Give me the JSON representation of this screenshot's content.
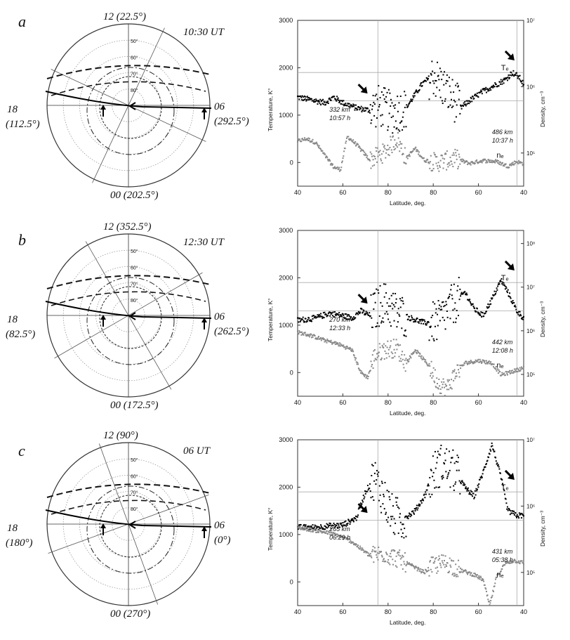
{
  "panels": [
    {
      "letter": "a",
      "dial": {
        "top": "12 (22.5°)",
        "ut": "10:30 UT",
        "left_hour": "18",
        "left_deg": "(112.5°)",
        "right_hour": "06",
        "right_deg": "(292.5°)",
        "bottom": "00 (202.5°)",
        "ring_labels": [
          "50°",
          "60°",
          "70°",
          "80°"
        ]
      },
      "chart_data": {
        "type": "scatter",
        "xlabel": "Latitude, deg.",
        "ylabel_left": "Temperature, K°",
        "ylabel_right": "Density, cm⁻³",
        "x_tick_labels": [
          "40",
          "60",
          "80",
          "80",
          "60",
          "40"
        ],
        "y_ticks": [
          0,
          1000,
          2000,
          3000
        ],
        "ylim": [
          -500,
          3000
        ],
        "right_tick_labels": [
          "10⁵",
          "10⁶",
          "10⁷"
        ],
        "right_log_range": [
          4.5,
          7
        ],
        "te_label": "Tₑ",
        "ne_label": "nₑ",
        "start_annot": [
          "332 km",
          "10:57 h"
        ],
        "end_annot": [
          "486 km",
          "10:37 h"
        ],
        "te_series": [
          [
            0,
            1380
          ],
          [
            0.06,
            1320
          ],
          [
            0.12,
            1260
          ],
          [
            0.16,
            1380
          ],
          [
            0.2,
            1260
          ],
          [
            0.26,
            1150
          ],
          [
            0.32,
            1100
          ],
          [
            0.36,
            1200
          ],
          [
            0.42,
            1050
          ],
          [
            0.48,
            1150
          ],
          [
            0.55,
            1650
          ],
          [
            0.6,
            1850
          ],
          [
            0.66,
            1500
          ],
          [
            0.72,
            1150
          ],
          [
            0.76,
            1300
          ],
          [
            0.82,
            1500
          ],
          [
            0.88,
            1650
          ],
          [
            0.92,
            1750
          ],
          [
            0.95,
            1900
          ],
          [
            0.98,
            1800
          ],
          [
            1,
            1650
          ]
        ],
        "ne_series": [
          [
            0,
            450
          ],
          [
            0.04,
            500
          ],
          [
            0.08,
            420
          ],
          [
            0.12,
            150
          ],
          [
            0.16,
            -100
          ],
          [
            0.19,
            -150
          ],
          [
            0.22,
            550
          ],
          [
            0.26,
            380
          ],
          [
            0.32,
            50
          ],
          [
            0.38,
            200
          ],
          [
            0.44,
            500
          ],
          [
            0.48,
            80
          ],
          [
            0.52,
            300
          ],
          [
            0.56,
            50
          ],
          [
            0.62,
            0
          ],
          [
            0.7,
            80
          ],
          [
            0.76,
            -20
          ],
          [
            0.82,
            40
          ],
          [
            0.88,
            20
          ],
          [
            0.93,
            -80
          ],
          [
            0.97,
            20
          ],
          [
            1,
            -30
          ]
        ]
      }
    },
    {
      "letter": "b",
      "dial": {
        "top": "12 (352.5°)",
        "ut": "12:30 UT",
        "left_hour": "18",
        "left_deg": "(82.5°)",
        "right_hour": "06",
        "right_deg": "(262.5°)",
        "bottom": "00 (172.5°)",
        "ring_labels": [
          "50°",
          "60°",
          "70°",
          "80°"
        ]
      },
      "chart_data": {
        "type": "scatter",
        "xlabel": "Latitude, deg.",
        "ylabel_left": "Temperature, K°",
        "ylabel_right": "Density, cm⁻³",
        "x_tick_labels": [
          "40",
          "60",
          "80",
          "80",
          "60",
          "40"
        ],
        "y_ticks": [
          0,
          1000,
          2000,
          3000
        ],
        "ylim": [
          -500,
          3000
        ],
        "right_tick_labels": [
          "10⁵",
          "10⁶",
          "10⁷",
          "10⁸"
        ],
        "right_log_range": [
          4.5,
          8.3
        ],
        "te_label": "Tₑ",
        "ne_label": "nₑ",
        "start_annot": [
          "270 km",
          "12:33 h"
        ],
        "end_annot": [
          "442 km",
          "12:08 h"
        ],
        "te_series": [
          [
            0,
            1100
          ],
          [
            0.08,
            1150
          ],
          [
            0.14,
            1250
          ],
          [
            0.2,
            1200
          ],
          [
            0.24,
            1150
          ],
          [
            0.28,
            1300
          ],
          [
            0.32,
            1200
          ],
          [
            0.38,
            1500
          ],
          [
            0.44,
            1250
          ],
          [
            0.5,
            1150
          ],
          [
            0.56,
            1050
          ],
          [
            0.62,
            1050
          ],
          [
            0.68,
            1400
          ],
          [
            0.74,
            1700
          ],
          [
            0.78,
            1350
          ],
          [
            0.82,
            1200
          ],
          [
            0.86,
            1550
          ],
          [
            0.9,
            1950
          ],
          [
            0.93,
            1700
          ],
          [
            0.97,
            1300
          ],
          [
            1,
            1150
          ]
        ],
        "ne_series": [
          [
            0,
            850
          ],
          [
            0.06,
            780
          ],
          [
            0.12,
            680
          ],
          [
            0.18,
            600
          ],
          [
            0.24,
            480
          ],
          [
            0.28,
            0
          ],
          [
            0.31,
            -100
          ],
          [
            0.34,
            350
          ],
          [
            0.38,
            480
          ],
          [
            0.44,
            520
          ],
          [
            0.48,
            200
          ],
          [
            0.52,
            480
          ],
          [
            0.58,
            150
          ],
          [
            0.62,
            -200
          ],
          [
            0.66,
            -350
          ],
          [
            0.7,
            0
          ],
          [
            0.74,
            200
          ],
          [
            0.8,
            250
          ],
          [
            0.86,
            200
          ],
          [
            0.9,
            -50
          ],
          [
            0.95,
            20
          ],
          [
            1,
            100
          ]
        ]
      }
    },
    {
      "letter": "c",
      "dial": {
        "top": "12 (90°)",
        "ut": "06 UT",
        "left_hour": "18",
        "left_deg": "(180°)",
        "right_hour": "06",
        "right_deg": "(0°)",
        "bottom": "00 (270°)",
        "ring_labels": [
          "50°",
          "60°",
          "70°",
          "80°"
        ]
      },
      "chart_data": {
        "type": "scatter",
        "xlabel": "Latitude, deg.",
        "ylabel_left": "Temperature, K°",
        "ylabel_right": "Density, cm⁻³",
        "x_tick_labels": [
          "40",
          "60",
          "80",
          "80",
          "60",
          "40"
        ],
        "y_ticks": [
          0,
          1000,
          2000,
          3000
        ],
        "ylim": [
          -500,
          3000
        ],
        "right_tick_labels": [
          "10⁵",
          "10⁶",
          "10⁷"
        ],
        "right_log_range": [
          4.5,
          7
        ],
        "te_label": "Tₑ",
        "ne_label": "nₑ",
        "start_annot": [
          "265 km",
          "06:29 h"
        ],
        "end_annot": [
          "431 km",
          "05:38 h"
        ],
        "te_series": [
          [
            0,
            1150
          ],
          [
            0.08,
            1150
          ],
          [
            0.14,
            1180
          ],
          [
            0.2,
            1200
          ],
          [
            0.26,
            1350
          ],
          [
            0.3,
            1900
          ],
          [
            0.34,
            2200
          ],
          [
            0.38,
            1800
          ],
          [
            0.42,
            1400
          ],
          [
            0.46,
            1300
          ],
          [
            0.52,
            1500
          ],
          [
            0.56,
            1800
          ],
          [
            0.6,
            2300
          ],
          [
            0.64,
            2500
          ],
          [
            0.7,
            2300
          ],
          [
            0.74,
            2000
          ],
          [
            0.78,
            1800
          ],
          [
            0.82,
            2300
          ],
          [
            0.86,
            2900
          ],
          [
            0.9,
            2200
          ],
          [
            0.93,
            1500
          ],
          [
            0.97,
            1400
          ],
          [
            1,
            1400
          ]
        ],
        "ne_series": [
          [
            0,
            1150
          ],
          [
            0.06,
            1100
          ],
          [
            0.12,
            1050
          ],
          [
            0.18,
            980
          ],
          [
            0.24,
            850
          ],
          [
            0.28,
            700
          ],
          [
            0.32,
            550
          ],
          [
            0.38,
            600
          ],
          [
            0.44,
            500
          ],
          [
            0.5,
            350
          ],
          [
            0.56,
            200
          ],
          [
            0.6,
            350
          ],
          [
            0.66,
            400
          ],
          [
            0.72,
            250
          ],
          [
            0.78,
            150
          ],
          [
            0.82,
            50
          ],
          [
            0.85,
            -500
          ],
          [
            0.88,
            100
          ],
          [
            0.92,
            400
          ],
          [
            0.96,
            450
          ],
          [
            1,
            400
          ]
        ]
      }
    }
  ]
}
